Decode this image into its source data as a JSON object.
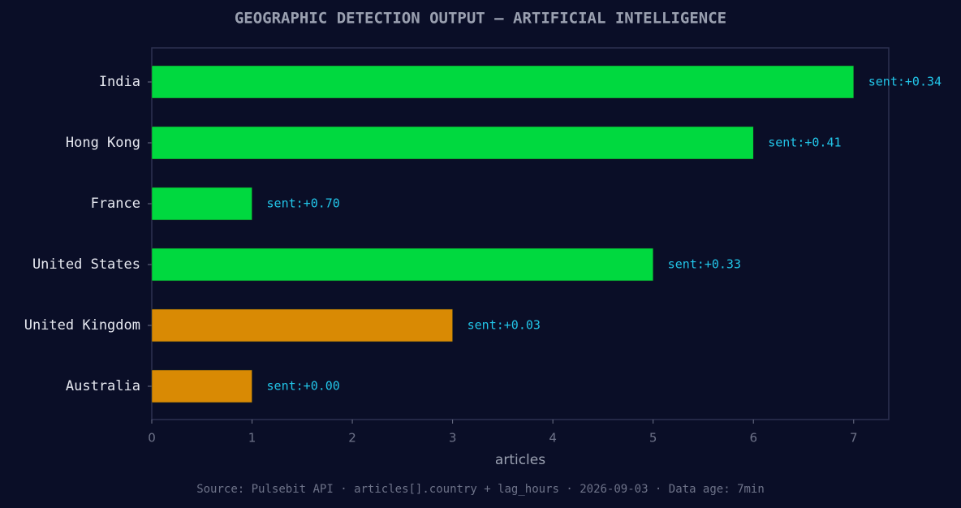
{
  "chart_data": {
    "type": "barh",
    "title": "GEOGRAPHIC DETECTION OUTPUT — ARTIFICIAL INTELLIGENCE",
    "categories": [
      "India",
      "Hong Kong",
      "France",
      "United States",
      "United Kingdom",
      "Australia"
    ],
    "values": [
      7,
      6,
      1,
      5,
      3,
      1
    ],
    "colors": [
      "#00d93f",
      "#00d93f",
      "#00d93f",
      "#00d93f",
      "#d98a04",
      "#d98a04"
    ],
    "annotations": [
      "sent:+0.34",
      "sent:+0.41",
      "sent:+0.70",
      "sent:+0.33",
      "sent:+0.03",
      "sent:+0.00"
    ],
    "xlabel": "articles",
    "xlim": [
      0,
      7.35
    ],
    "xticks": [
      0,
      1,
      2,
      3,
      4,
      5,
      6,
      7
    ],
    "footer": "Source: Pulsebit API · articles[].country + lag_hours · 2026-09-03 · Data age: 7min"
  }
}
